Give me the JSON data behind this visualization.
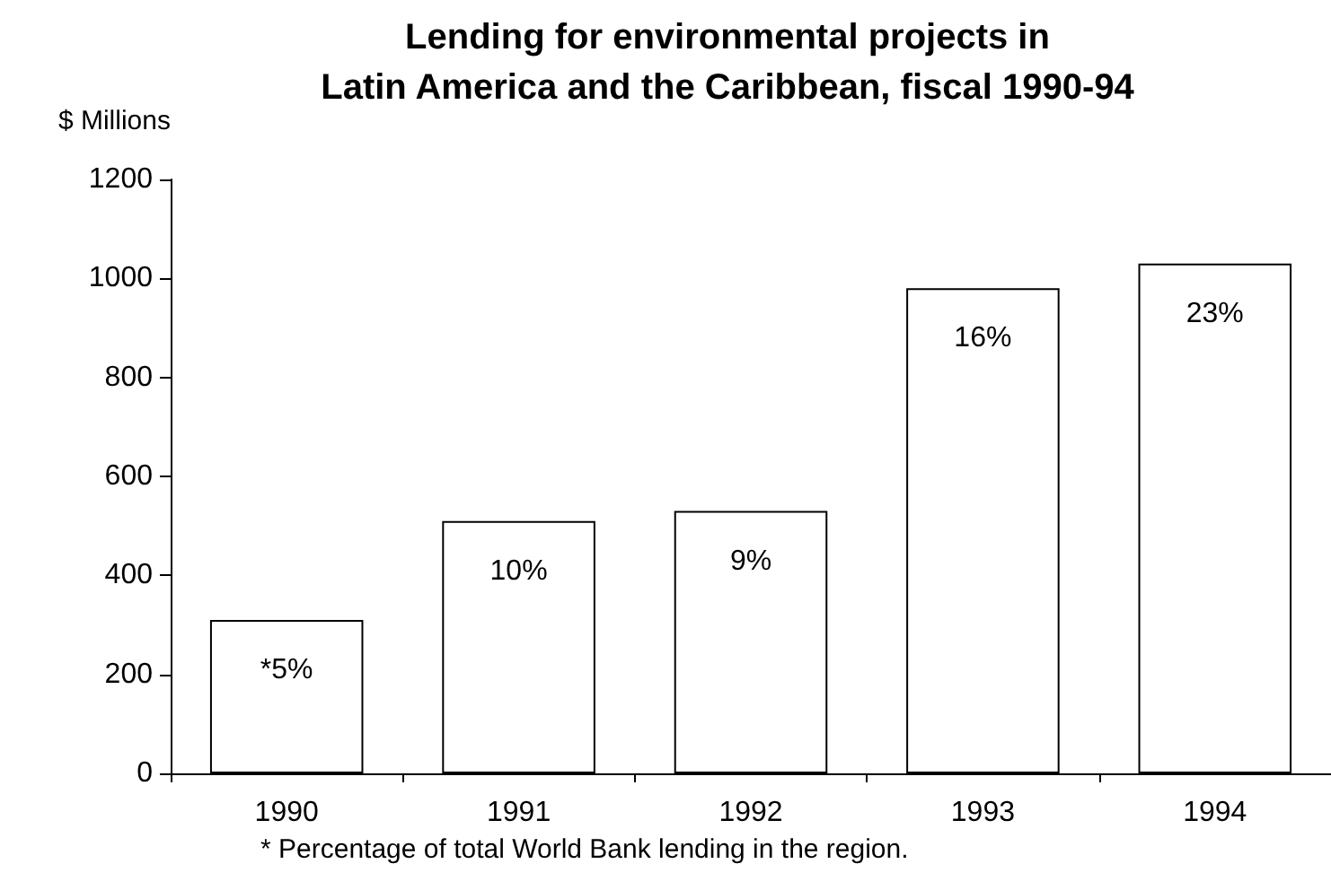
{
  "chart_data": {
    "type": "bar",
    "title": "Lending for environmental projects in\nLatin America and the Caribbean, fiscal 1990-94",
    "ylabel": "$ Millions",
    "categories": [
      "1990",
      "1991",
      "1992",
      "1993",
      "1994"
    ],
    "values": [
      310,
      510,
      530,
      980,
      1030
    ],
    "color": "#ffffff",
    "ylim": [
      0,
      1200
    ],
    "yticks": [
      0,
      200,
      400,
      600,
      800,
      1000,
      1200
    ],
    "grid": false,
    "annotations": [
      {
        "text": "*5%",
        "x": "1990",
        "y": 310
      },
      {
        "text": "10%",
        "x": "1991",
        "y": 510
      },
      {
        "text": "9%",
        "x": "1992",
        "y": 530
      },
      {
        "text": "16%",
        "x": "1993",
        "y": 980
      },
      {
        "text": "23%",
        "x": "1994",
        "y": 1030
      },
      "* Percentage of total World Bank lending in the region."
    ]
  }
}
